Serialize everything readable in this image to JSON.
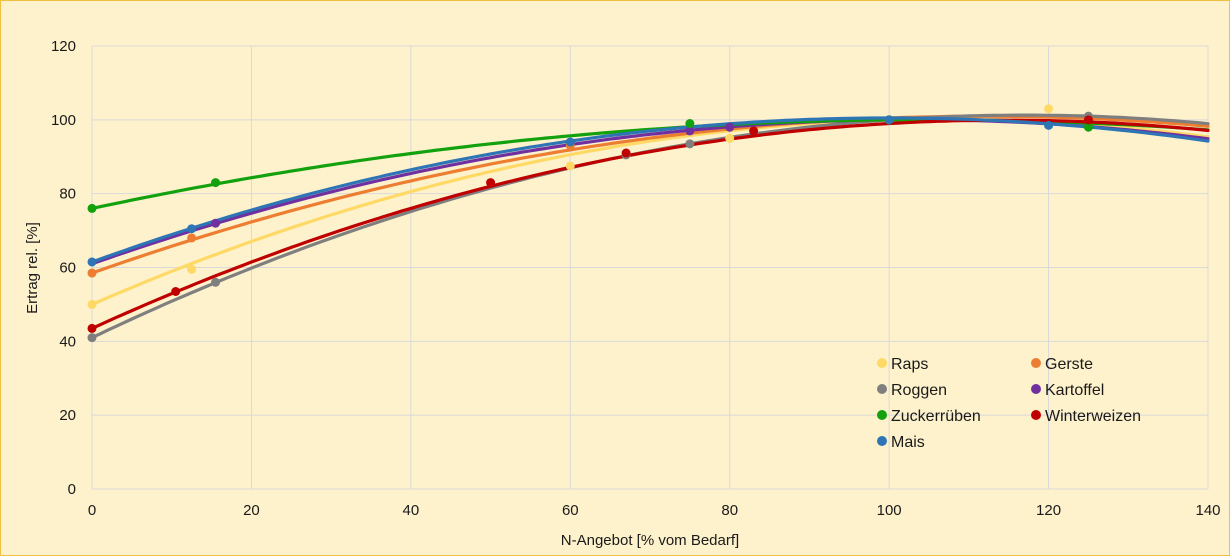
{
  "chart_data": {
    "type": "scatter",
    "title": "",
    "xlabel": "N-Angebot [% vom Bedarf]",
    "ylabel": "Ertrag rel. [%]",
    "xlim": [
      0,
      140
    ],
    "ylim": [
      0,
      120
    ],
    "xticks": [
      0,
      20,
      40,
      60,
      80,
      100,
      120,
      140
    ],
    "yticks": [
      0,
      20,
      40,
      60,
      80,
      100,
      120
    ],
    "grid": true,
    "legend_position": "bottom-right",
    "series": [
      {
        "name": "Raps",
        "color": "#ffd966",
        "x": [
          0,
          12.5,
          60,
          80,
          100,
          120
        ],
        "y": [
          50,
          59.5,
          87.5,
          95,
          100,
          103
        ],
        "trend": [
          50,
          0.94,
          -0.0044
        ]
      },
      {
        "name": "Gerste",
        "color": "#ed7d31",
        "x": [
          0,
          12.5,
          60,
          100
        ],
        "y": [
          58.5,
          68,
          93,
          100
        ],
        "trend": [
          58.5,
          0.76,
          -0.0034
        ]
      },
      {
        "name": "Roggen",
        "color": "#7f7f7f",
        "x": [
          0,
          15.5,
          67,
          75,
          100,
          125
        ],
        "y": [
          41,
          56,
          90.5,
          93.5,
          100,
          101
        ],
        "trend": [
          41,
          1.03,
          -0.0044
        ]
      },
      {
        "name": "Kartoffel",
        "color": "#7030a0",
        "x": [
          15.5,
          75,
          80,
          100
        ],
        "y": [
          72,
          97,
          98,
          100
        ],
        "trend": [
          61,
          0.76,
          -0.0037
        ]
      },
      {
        "name": "Zuckerrüben",
        "color": "#13a10e",
        "x": [
          0,
          15.5,
          75,
          100,
          125
        ],
        "y": [
          76,
          83,
          99,
          100,
          98
        ],
        "trend": [
          76,
          0.46,
          -0.0022
        ]
      },
      {
        "name": "Winterweizen",
        "color": "#c00000",
        "x": [
          0,
          10.5,
          50,
          67,
          83,
          125
        ],
        "y": [
          43.5,
          53.5,
          83,
          91,
          97,
          100
        ],
        "trend": [
          43.5,
          0.985,
          -0.0043
        ]
      },
      {
        "name": "Mais",
        "color": "#2e75b6",
        "x": [
          0,
          12.5,
          60,
          100,
          120
        ],
        "y": [
          61.5,
          70.5,
          94,
          100,
          98.5
        ],
        "trend": [
          61.5,
          0.78,
          -0.0039
        ]
      }
    ]
  }
}
